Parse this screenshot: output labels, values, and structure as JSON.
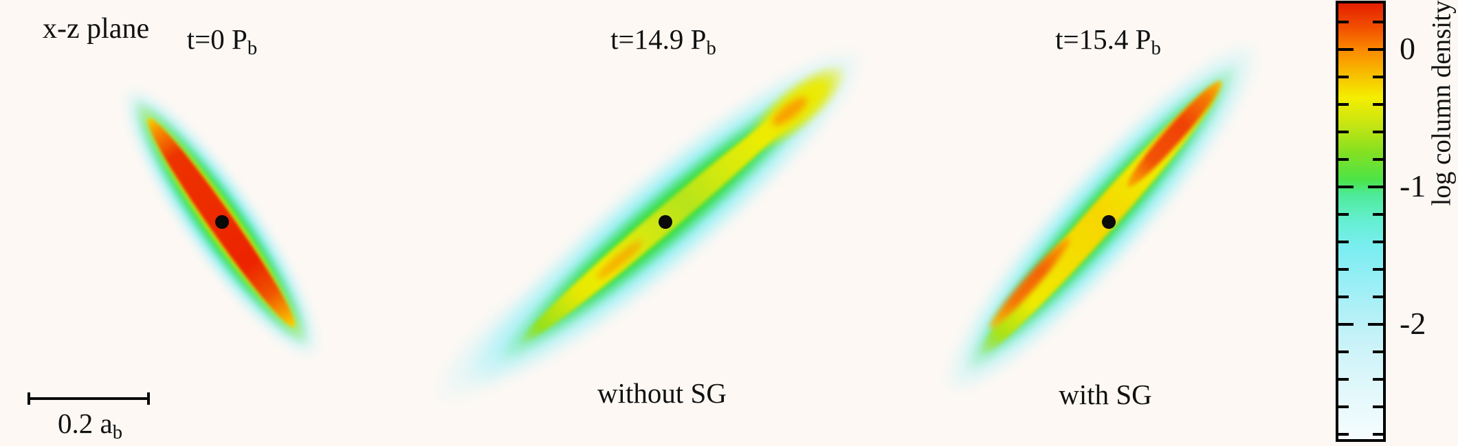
{
  "figure": {
    "plane_label": "x-z plane"
  },
  "panels": [
    {
      "title_main": "t=0 P",
      "title_sub": "b",
      "caption": ""
    },
    {
      "title_main": "t=14.9 P",
      "title_sub": "b",
      "caption": "without SG"
    },
    {
      "title_main": "t=15.4 P",
      "title_sub": "b",
      "caption": "with SG"
    }
  ],
  "scale_bar": {
    "label_main": "0.2 a",
    "label_sub": "b"
  },
  "chart_data": {
    "type": "heatmap",
    "title": "x-z plane",
    "panels": [
      {
        "label": "t=0 Pb",
        "caption": null,
        "marker": "black dot at binary centre",
        "disk_tilt_deg_from_horizontal": -55,
        "peak_log_column_density": 0.3,
        "color_structure": [
          "red core",
          "yellow rim",
          "green rim",
          "cyan halo"
        ]
      },
      {
        "label": "t=14.9 Pb",
        "caption": "without SG",
        "marker": "black dot at binary centre",
        "disk_tilt_deg_from_horizontal": 40,
        "peak_log_column_density": -0.1,
        "color_structure": [
          "yellow-green ridge with small orange spots",
          "green body",
          "broad cyan halo with diffuse lower tail"
        ]
      },
      {
        "label": "t=15.4 Pb",
        "caption": "with SG",
        "marker": "black dot at binary centre",
        "disk_tilt_deg_from_horizontal": 48,
        "peak_log_column_density": 0.2,
        "color_structure": [
          "orange-red ridge segments",
          "yellow ridge",
          "green rim",
          "cyan halo"
        ]
      }
    ],
    "colorbar": {
      "label": "log column density",
      "orientation": "vertical",
      "value_top": 0.36,
      "value_bottom": -2.85,
      "minor_tick_step": 0.2,
      "major_ticks": [
        0,
        -1,
        -2
      ],
      "ticks": [
        {
          "value": 0.2,
          "label": null
        },
        {
          "value": 0.0,
          "label": "0"
        },
        {
          "value": -0.2,
          "label": null
        },
        {
          "value": -0.4,
          "label": null
        },
        {
          "value": -0.6,
          "label": null
        },
        {
          "value": -0.8,
          "label": null
        },
        {
          "value": -1.0,
          "label": "-1"
        },
        {
          "value": -1.2,
          "label": null
        },
        {
          "value": -1.4,
          "label": null
        },
        {
          "value": -1.6,
          "label": null
        },
        {
          "value": -1.8,
          "label": null
        },
        {
          "value": -2.0,
          "label": "-2"
        },
        {
          "value": -2.2,
          "label": null
        },
        {
          "value": -2.4,
          "label": null
        },
        {
          "value": -2.6,
          "label": null
        },
        {
          "value": -2.8,
          "label": null
        }
      ],
      "colormap_stops": [
        {
          "value": 0.36,
          "color": "#e51e00"
        },
        {
          "value": 0.15,
          "color": "#f25200"
        },
        {
          "value": 0.0,
          "color": "#fb8800"
        },
        {
          "value": -0.2,
          "color": "#f7c400"
        },
        {
          "value": -0.35,
          "color": "#f4ee00"
        },
        {
          "value": -0.55,
          "color": "#c6e512"
        },
        {
          "value": -0.75,
          "color": "#84e022"
        },
        {
          "value": -0.95,
          "color": "#4ce448"
        },
        {
          "value": -1.05,
          "color": "#4dea96"
        },
        {
          "value": -1.25,
          "color": "#65efd2"
        },
        {
          "value": -1.45,
          "color": "#7beef2"
        },
        {
          "value": -1.8,
          "color": "#a5eff6"
        },
        {
          "value": -2.1,
          "color": "#c6f2f8"
        },
        {
          "value": -2.5,
          "color": "#e3f8fb"
        },
        {
          "value": -2.85,
          "color": "#f7fdfe"
        }
      ]
    },
    "scale_bar": {
      "label": "0.2 ab",
      "length_value": 0.2,
      "length_unit": "ab"
    },
    "axes": {
      "frame": false,
      "grid": false,
      "background": "#fdf8f4"
    }
  }
}
